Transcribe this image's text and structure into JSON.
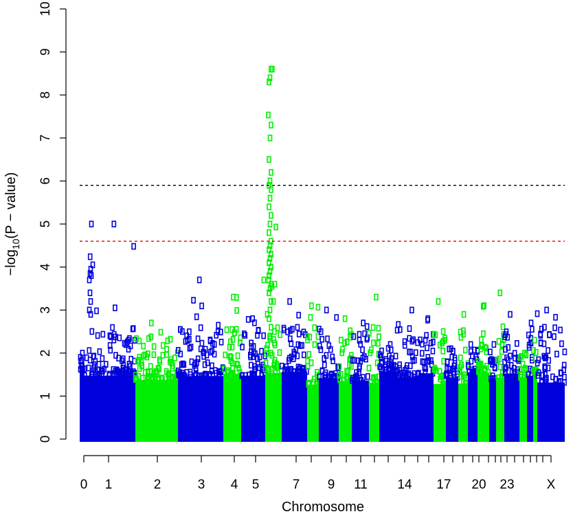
{
  "chart_data": {
    "type": "scatter",
    "title": "",
    "xlabel": "Chromosome",
    "ylabel_prefix": "−log",
    "ylabel_subscript": "10",
    "ylabel_suffix": "(P − value)",
    "ylim": [
      0,
      10
    ],
    "yticks": [
      "0",
      "1",
      "2",
      "3",
      "4",
      "5",
      "6",
      "7",
      "8",
      "9",
      "10"
    ],
    "xtick_labels": [
      "0",
      "1",
      "2",
      "3",
      "4",
      "5",
      "7",
      "9",
      "11",
      "14",
      "17",
      "20",
      "23",
      "X"
    ],
    "thresholds": [
      {
        "value": 5.9,
        "color": "#000000",
        "style": "dashed"
      },
      {
        "value": 4.6,
        "color": "#dd0000",
        "style": "dashed"
      }
    ],
    "colors": {
      "odd": "#0000dd",
      "even": "#00ee00"
    },
    "chromosomes": [
      {
        "id": "0",
        "color": "blue",
        "max": 2.0
      },
      {
        "id": "1",
        "color": "blue",
        "max": 5.0
      },
      {
        "id": "2",
        "color": "green",
        "max": 2.7
      },
      {
        "id": "3",
        "color": "blue",
        "max": 3.7
      },
      {
        "id": "4",
        "color": "green",
        "max": 3.3
      },
      {
        "id": "5",
        "color": "blue",
        "max": 2.8
      },
      {
        "id": "6",
        "color": "green",
        "max": 8.6
      },
      {
        "id": "7",
        "color": "blue",
        "max": 3.2
      },
      {
        "id": "8",
        "color": "green",
        "max": 3.1
      },
      {
        "id": "9",
        "color": "blue",
        "max": 3.0
      },
      {
        "id": "10",
        "color": "green",
        "max": 2.8
      },
      {
        "id": "11",
        "color": "blue",
        "max": 2.7
      },
      {
        "id": "12",
        "color": "green",
        "max": 3.3
      },
      {
        "id": "13",
        "color": "blue",
        "max": 2.2
      },
      {
        "id": "14",
        "color": "blue",
        "max": 3.0
      },
      {
        "id": "15",
        "color": "blue",
        "max": 2.8
      },
      {
        "id": "16",
        "color": "green",
        "max": 3.2
      },
      {
        "id": "17",
        "color": "blue",
        "max": 2.1
      },
      {
        "id": "18",
        "color": "green",
        "max": 2.9
      },
      {
        "id": "19",
        "color": "blue",
        "max": 2.2
      },
      {
        "id": "20",
        "color": "green",
        "max": 3.1
      },
      {
        "id": "21",
        "color": "blue",
        "max": 2.2
      },
      {
        "id": "22",
        "color": "green",
        "max": 3.4
      },
      {
        "id": "23",
        "color": "blue",
        "max": 2.9
      },
      {
        "id": "24",
        "color": "green",
        "max": 2.0
      },
      {
        "id": "25",
        "color": "blue",
        "max": 2.7
      },
      {
        "id": "26",
        "color": "green",
        "max": 2.3
      },
      {
        "id": "X",
        "color": "blue",
        "max": 3.0
      }
    ]
  }
}
